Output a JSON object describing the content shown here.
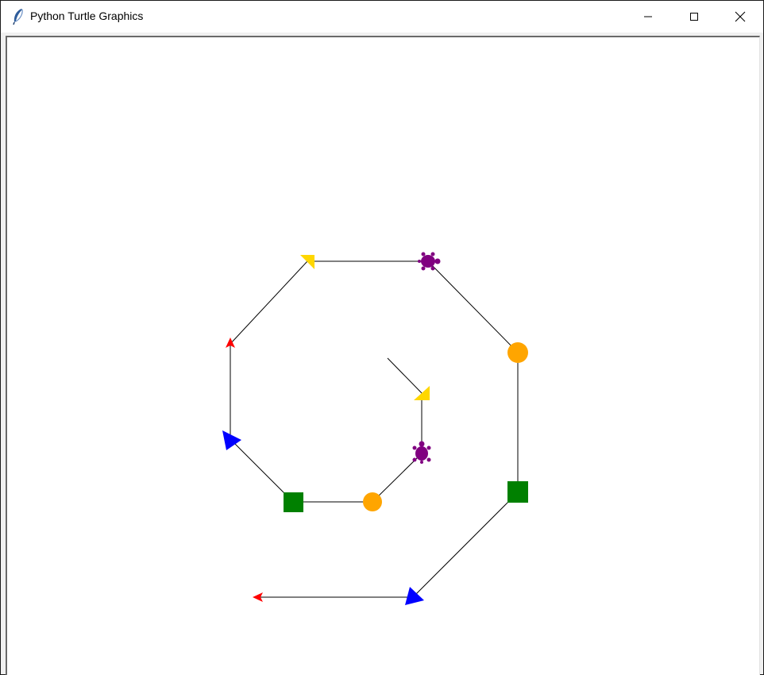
{
  "window": {
    "title": "Python Turtle Graphics",
    "app_icon": "feather-icon",
    "controls": {
      "minimize": "minimize-icon",
      "maximize": "maximize-icon",
      "close": "close-icon"
    }
  },
  "canvas": {
    "background": "#ffffff",
    "line_color": "#000000",
    "stamp_colors": {
      "red": "#ff0000",
      "yellow": "#ffd700",
      "purple": "#800080",
      "orange": "#ffa500",
      "green": "#008000",
      "blue": "#0000ff"
    }
  }
}
